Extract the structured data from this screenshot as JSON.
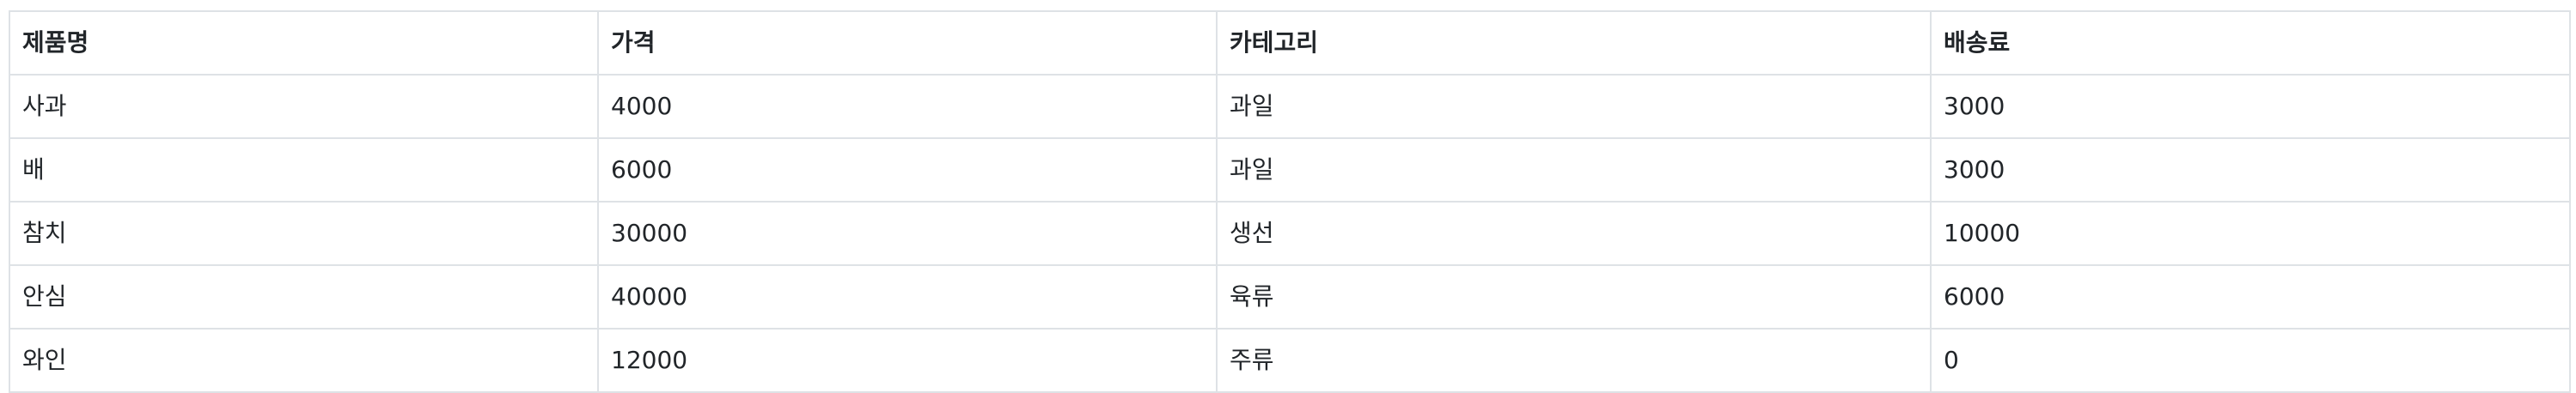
{
  "table": {
    "headers": [
      "제품명",
      "가격",
      "카테고리",
      "배송료"
    ],
    "rows": [
      [
        "사과",
        "4000",
        "과일",
        "3000"
      ],
      [
        "배",
        "6000",
        "과일",
        "3000"
      ],
      [
        "참치",
        "30000",
        "생선",
        "10000"
      ],
      [
        "안심",
        "40000",
        "육류",
        "6000"
      ],
      [
        "와인",
        "12000",
        "주류",
        "0"
      ]
    ]
  }
}
